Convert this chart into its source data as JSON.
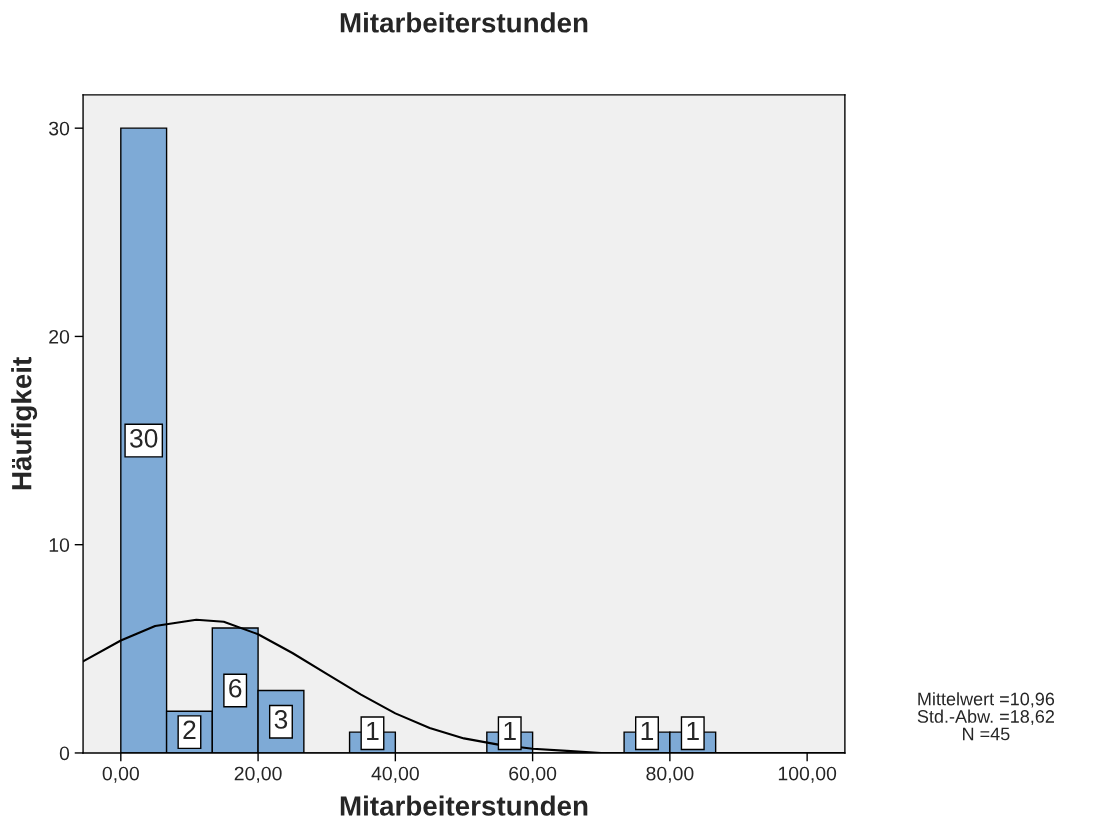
{
  "chart_data": {
    "type": "histogram",
    "title": "Mitarbeiterstunden",
    "xlabel": "Mitarbeiterstunden",
    "ylabel": "Häufigkeit",
    "bins": [
      0,
      6.67,
      13.33,
      20,
      26.67,
      33.33,
      40,
      46.67,
      53.33,
      60,
      66.67,
      73.33,
      80,
      86.67
    ],
    "values": [
      30,
      2,
      6,
      3,
      0,
      1,
      0,
      0,
      1,
      0,
      0,
      1,
      1
    ],
    "value_labels": [
      "30",
      "2",
      "6",
      "3",
      null,
      "1",
      null,
      null,
      "1",
      null,
      null,
      "1",
      "1"
    ],
    "color": "#7eaad6",
    "series": [
      {
        "type": "line",
        "color": "#000000",
        "x": [
          -5.5,
          0,
          5,
          11,
          15,
          20,
          25,
          30,
          35,
          40,
          45,
          50,
          55,
          60,
          65,
          70,
          80,
          90,
          105.5
        ],
        "values": [
          4.4,
          5.4,
          6.1,
          6.4,
          6.3,
          5.7,
          4.8,
          3.8,
          2.8,
          1.9,
          1.2,
          0.7,
          0.4,
          0.2,
          0.1,
          0,
          0,
          0,
          0
        ]
      }
    ],
    "xlim": [
      -5.5,
      105.5
    ],
    "ylim": [
      0,
      31.6
    ],
    "xticks": [
      {
        "value": 0,
        "label": "0,00"
      },
      {
        "value": 20,
        "label": "20,00"
      },
      {
        "value": 40,
        "label": "40,00"
      },
      {
        "value": 60,
        "label": "60,00"
      },
      {
        "value": 80,
        "label": "80,00"
      },
      {
        "value": 100,
        "label": "100,00"
      }
    ],
    "yticks": [
      0,
      10,
      20,
      30
    ],
    "grid": false,
    "legend": false,
    "annotations": [
      "Mittelwert =10,96",
      "Std.-Abw. =18,62",
      "N =45"
    ]
  }
}
